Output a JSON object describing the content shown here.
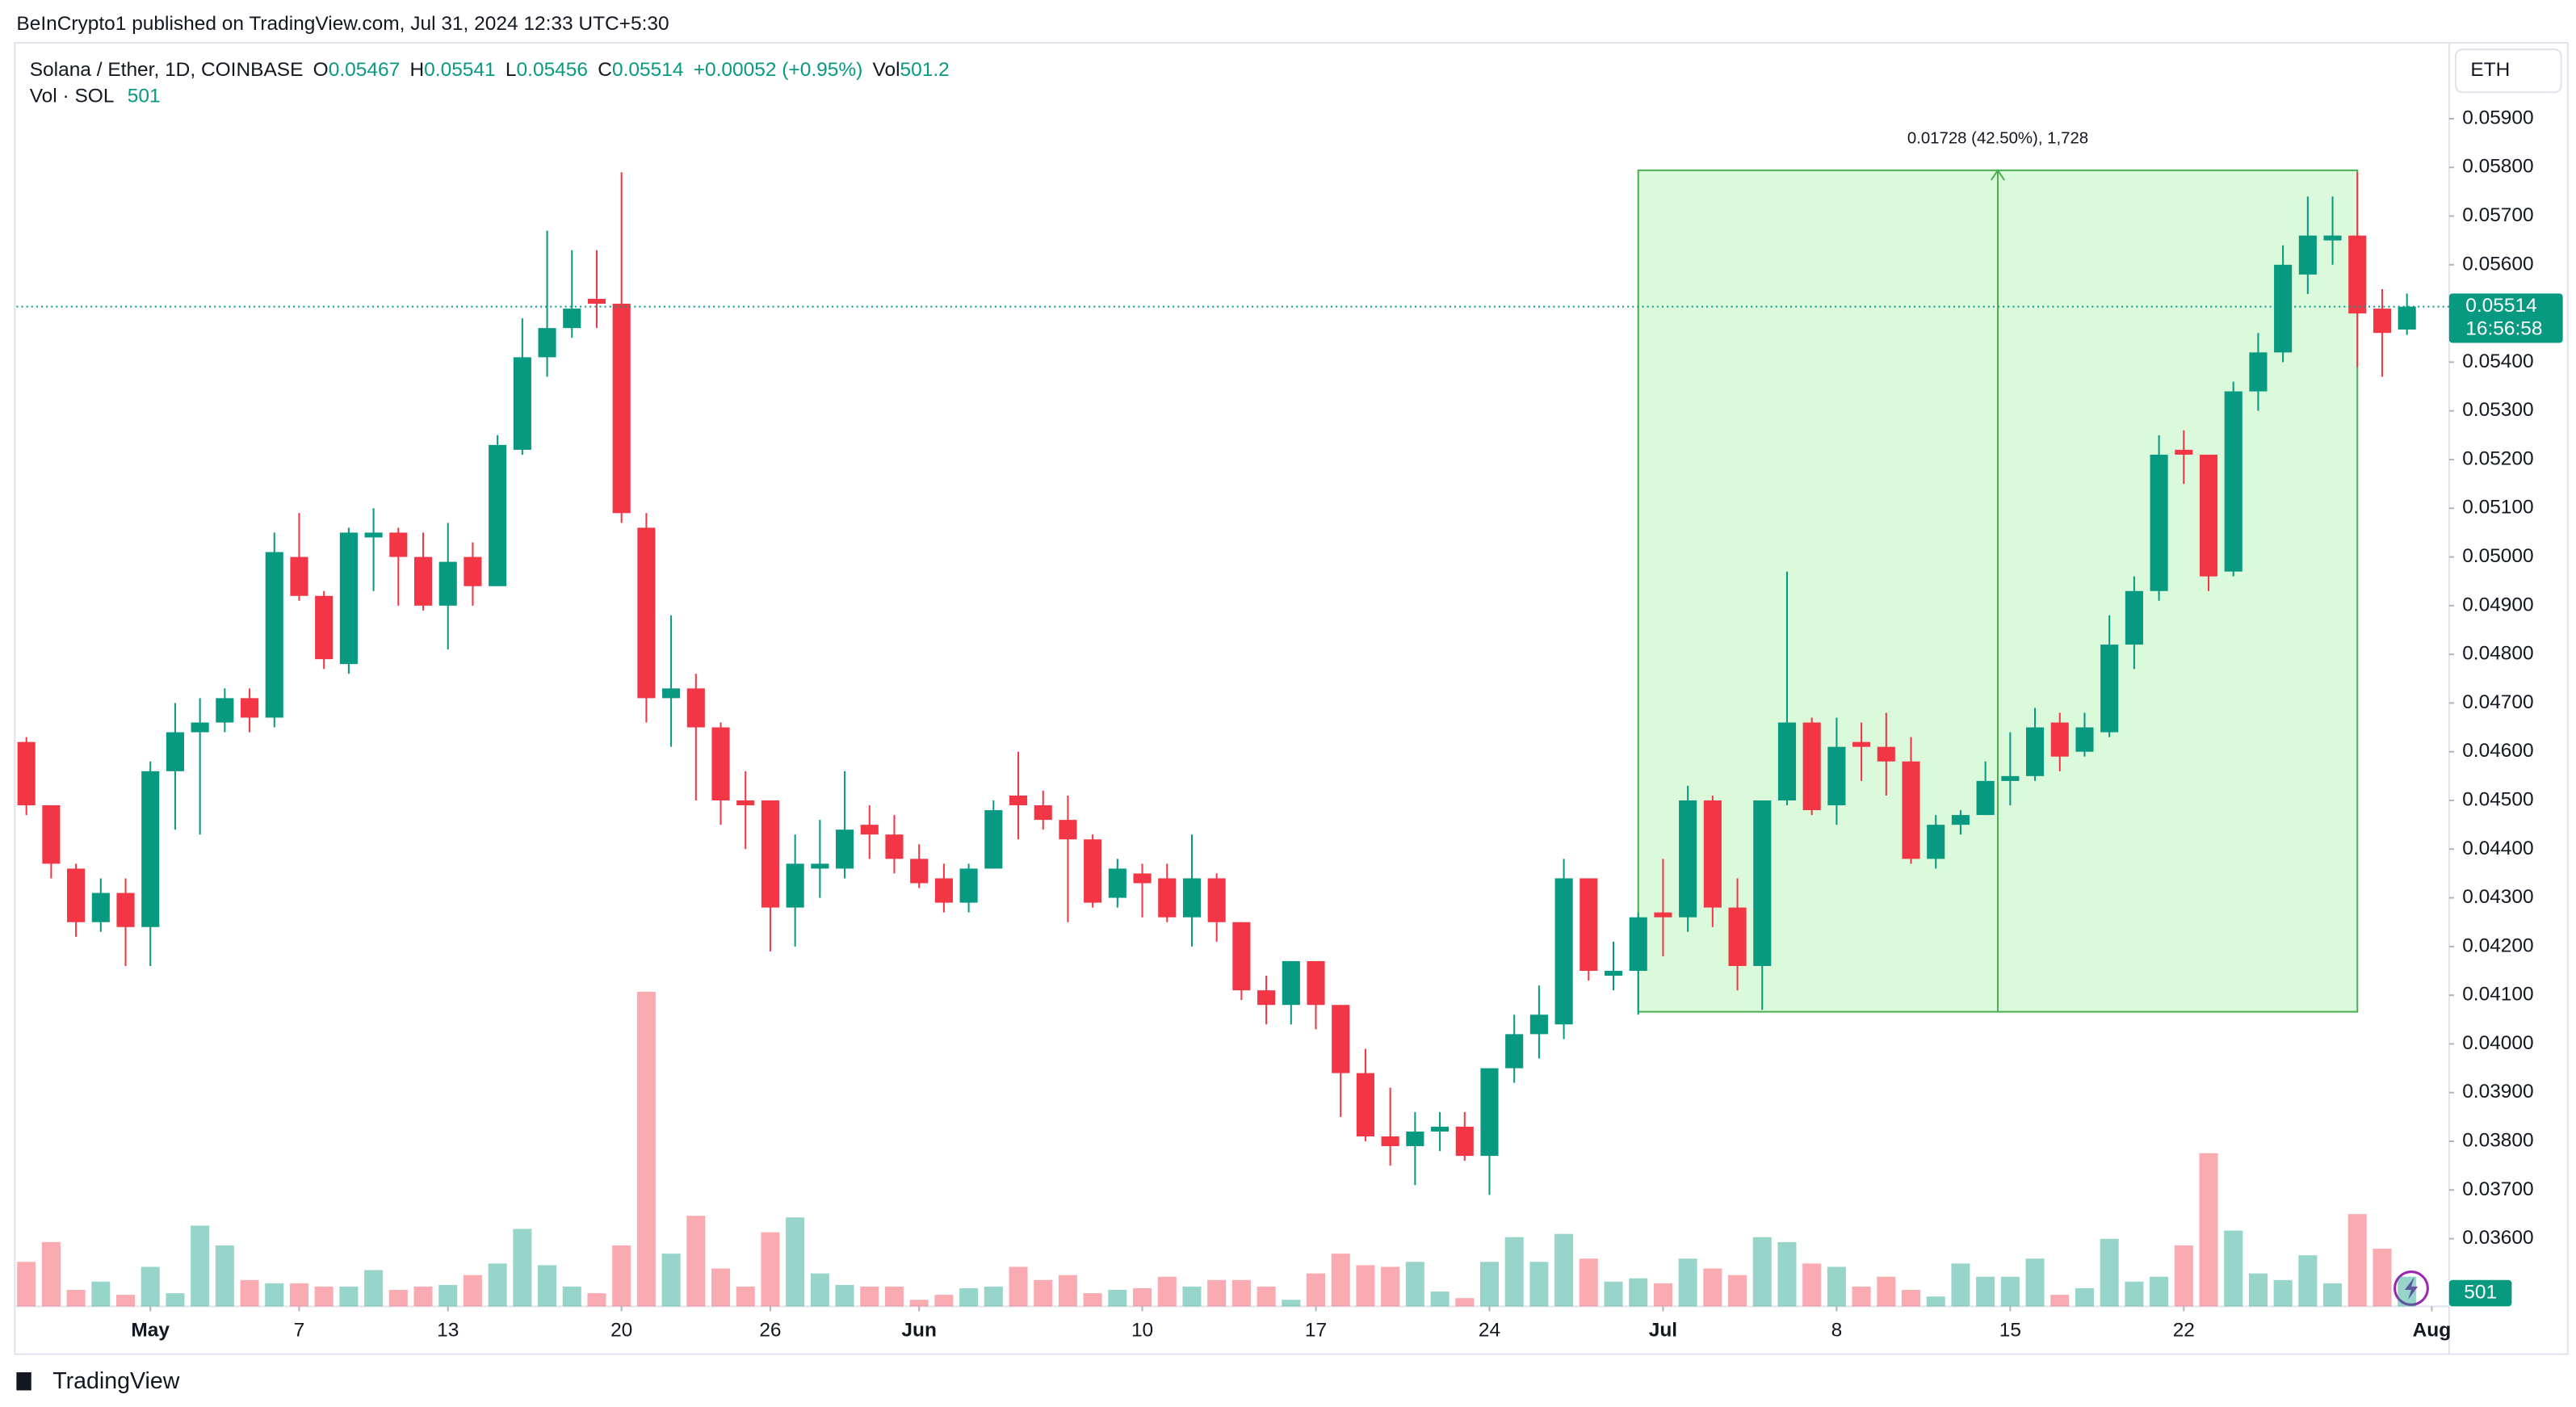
{
  "header": "BeInCrypto1 published on TradingView.com, Jul 31, 2024 12:33 UTC+5:30",
  "footer": "TradingView",
  "chart_data": {
    "type": "candlestick",
    "symbol": "Solana / Ether, 1D, COINBASE",
    "ohlc_letters": [
      "O",
      "H",
      "L",
      "C"
    ],
    "change": "+0.00052 (+0.95%)",
    "volume_letter": "Vol",
    "volume_title": "Vol · SOL",
    "volume_label": "501",
    "currency": "ETH",
    "countdown": "16:56:58",
    "up_color": "#089981",
    "down_color": "#f23645",
    "open": [
      0.0462,
      0.0449,
      0.0436,
      0.0425,
      0.0431,
      0.0424,
      0.0456,
      0.0464,
      0.0466,
      0.0471,
      0.0467,
      0.05,
      0.0492,
      0.0478,
      0.0504,
      0.0505,
      0.05,
      0.049,
      0.05,
      0.0494,
      0.0522,
      0.0541,
      0.0547,
      0.0553,
      0.0552,
      0.0506,
      0.0471,
      0.0473,
      0.0465,
      0.045,
      0.045,
      0.0428,
      0.0436,
      0.0436,
      0.0445,
      0.0443,
      0.0438,
      0.0434,
      0.0429,
      0.0436,
      0.0451,
      0.0449,
      0.0446,
      0.0442,
      0.043,
      0.0435,
      0.0434,
      0.0426,
      0.0434,
      0.0425,
      0.0411,
      0.0408,
      0.0417,
      0.0408,
      0.0394,
      0.0381,
      0.0379,
      0.0382,
      0.0383,
      0.0377,
      0.0395,
      0.0402,
      0.0404,
      0.0434,
      0.0414,
      0.0415,
      0.0427,
      0.0426,
      0.045,
      0.0428,
      0.0416,
      0.045,
      0.0466,
      0.0449,
      0.0462,
      0.0461,
      0.0458,
      0.0438,
      0.0445,
      0.0447,
      0.0454,
      0.0455,
      0.0466,
      0.046,
      0.0464,
      0.0482,
      0.0493,
      0.0522,
      0.0521,
      0.0497,
      0.0534,
      0.0542,
      0.0558,
      0.0565,
      0.0566,
      0.0551,
      0.05467
    ],
    "high": [
      0.0463,
      0.0449,
      0.0437,
      0.0434,
      0.0434,
      0.0458,
      0.047,
      0.0471,
      0.0473,
      0.0473,
      0.0505,
      0.0509,
      0.0493,
      0.0506,
      0.051,
      0.0506,
      0.0505,
      0.0507,
      0.0503,
      0.0525,
      0.0549,
      0.0567,
      0.0563,
      0.0563,
      0.0579,
      0.0509,
      0.0488,
      0.0476,
      0.0466,
      0.0456,
      0.045,
      0.0443,
      0.0446,
      0.0456,
      0.0449,
      0.0447,
      0.0441,
      0.0437,
      0.0437,
      0.045,
      0.046,
      0.0452,
      0.0451,
      0.0443,
      0.0438,
      0.0437,
      0.0437,
      0.0443,
      0.0435,
      0.0425,
      0.0414,
      0.0417,
      0.0417,
      0.0408,
      0.0399,
      0.0391,
      0.0386,
      0.0386,
      0.0386,
      0.0395,
      0.0406,
      0.0412,
      0.0438,
      0.0434,
      0.0421,
      0.0427,
      0.0438,
      0.0453,
      0.0451,
      0.0434,
      0.045,
      0.0497,
      0.0467,
      0.0467,
      0.0466,
      0.0468,
      0.0463,
      0.0447,
      0.0448,
      0.0458,
      0.0464,
      0.0469,
      0.0468,
      0.0468,
      0.0488,
      0.0496,
      0.0525,
      0.0526,
      0.0521,
      0.0536,
      0.0546,
      0.0564,
      0.0574,
      0.0574,
      0.0579,
      0.0555,
      0.05541
    ],
    "low": [
      0.0447,
      0.0434,
      0.0422,
      0.0423,
      0.0416,
      0.0416,
      0.0444,
      0.0443,
      0.0464,
      0.0464,
      0.0465,
      0.0491,
      0.0477,
      0.0476,
      0.0493,
      0.049,
      0.0489,
      0.0481,
      0.049,
      0.0494,
      0.0521,
      0.0537,
      0.0545,
      0.0547,
      0.0507,
      0.0466,
      0.0461,
      0.045,
      0.0445,
      0.044,
      0.0419,
      0.042,
      0.043,
      0.0434,
      0.0438,
      0.0435,
      0.0432,
      0.0427,
      0.0427,
      0.0436,
      0.0442,
      0.0444,
      0.0425,
      0.0428,
      0.0428,
      0.0426,
      0.0425,
      0.042,
      0.0421,
      0.0409,
      0.0404,
      0.0404,
      0.0403,
      0.0385,
      0.038,
      0.0375,
      0.0371,
      0.0378,
      0.0376,
      0.0369,
      0.0392,
      0.0397,
      0.0401,
      0.0413,
      0.0411,
      0.0406,
      0.0418,
      0.0423,
      0.0424,
      0.0411,
      0.0407,
      0.0449,
      0.0447,
      0.0445,
      0.0454,
      0.0451,
      0.0437,
      0.0436,
      0.0443,
      0.0447,
      0.0449,
      0.0454,
      0.0456,
      0.0459,
      0.0463,
      0.0477,
      0.0491,
      0.0515,
      0.0493,
      0.0496,
      0.053,
      0.054,
      0.0554,
      0.056,
      0.0539,
      0.0537,
      0.05456
    ],
    "close": [
      0.0449,
      0.0437,
      0.0425,
      0.0431,
      0.0424,
      0.0456,
      0.0464,
      0.0466,
      0.0471,
      0.0467,
      0.0501,
      0.0492,
      0.0479,
      0.0505,
      0.0505,
      0.05,
      0.049,
      0.0499,
      0.0494,
      0.0523,
      0.0541,
      0.0547,
      0.0551,
      0.0552,
      0.0509,
      0.0471,
      0.0473,
      0.0465,
      0.045,
      0.0449,
      0.0428,
      0.0437,
      0.0437,
      0.0444,
      0.0443,
      0.0438,
      0.0433,
      0.0429,
      0.0436,
      0.0448,
      0.0449,
      0.0446,
      0.0442,
      0.0429,
      0.0436,
      0.0433,
      0.0426,
      0.0434,
      0.0425,
      0.0411,
      0.0408,
      0.0417,
      0.0408,
      0.0394,
      0.0381,
      0.0379,
      0.0382,
      0.0383,
      0.0377,
      0.0395,
      0.0402,
      0.0406,
      0.0434,
      0.0415,
      0.0415,
      0.0426,
      0.0426,
      0.045,
      0.0428,
      0.0416,
      0.045,
      0.0466,
      0.0448,
      0.0461,
      0.0461,
      0.0458,
      0.0438,
      0.0445,
      0.0447,
      0.0454,
      0.0455,
      0.0465,
      0.0459,
      0.0465,
      0.0482,
      0.0493,
      0.0521,
      0.0521,
      0.0496,
      0.0534,
      0.0542,
      0.056,
      0.0566,
      0.0566,
      0.055,
      0.0546,
      0.05514
    ],
    "volume": [
      751,
      1084,
      278,
      417,
      195,
      667,
      222,
      1362,
      1029,
      445,
      389,
      389,
      334,
      334,
      612,
      278,
      334,
      361,
      528,
      723,
      1307,
      695,
      334,
      222,
      1029,
      5310,
      890,
      1529,
      639,
      334,
      1251,
      1501,
      556,
      361,
      334,
      334,
      111,
      195,
      306,
      334,
      667,
      445,
      528,
      222,
      278,
      306,
      500,
      334,
      445,
      445,
      334,
      111,
      556,
      890,
      695,
      667,
      751,
      250,
      139,
      751,
      1168,
      751,
      1223,
      806,
      417,
      473,
      389,
      806,
      639,
      528,
      1168,
      1084,
      723,
      667,
      334,
      500,
      278,
      167,
      723,
      500,
      500,
      806,
      195,
      306,
      1140,
      417,
      500,
      1029,
      2585,
      1279,
      556,
      445,
      862,
      389,
      1557,
      973,
      501.2
    ],
    "xlim": [
      -0.4,
      97.7
    ],
    "xticks": [
      {
        "value": 5,
        "label": "May"
      },
      {
        "value": 11,
        "label": "7"
      },
      {
        "value": 17,
        "label": "13"
      },
      {
        "value": 24,
        "label": "20"
      },
      {
        "value": 30,
        "label": "26"
      },
      {
        "value": 36,
        "label": "Jun"
      },
      {
        "value": 45,
        "label": "10"
      },
      {
        "value": 52,
        "label": "17"
      },
      {
        "value": 59,
        "label": "24"
      },
      {
        "value": 66,
        "label": "Jul"
      },
      {
        "value": 73,
        "label": "8"
      },
      {
        "value": 80,
        "label": "15"
      },
      {
        "value": 87,
        "label": "22"
      },
      {
        "value": 97,
        "label": "Aug"
      }
    ],
    "ylim": [
      0.03461,
      0.06049
    ],
    "yticks": [
      {
        "value": 0.036,
        "label": "0.03600"
      },
      {
        "value": 0.037,
        "label": "0.03700"
      },
      {
        "value": 0.038,
        "label": "0.03800"
      },
      {
        "value": 0.039,
        "label": "0.03900"
      },
      {
        "value": 0.04,
        "label": "0.04000"
      },
      {
        "value": 0.041,
        "label": "0.04100"
      },
      {
        "value": 0.042,
        "label": "0.04200"
      },
      {
        "value": 0.043,
        "label": "0.04300"
      },
      {
        "value": 0.044,
        "label": "0.04400"
      },
      {
        "value": 0.045,
        "label": "0.04500"
      },
      {
        "value": 0.046,
        "label": "0.04600"
      },
      {
        "value": 0.047,
        "label": "0.04700"
      },
      {
        "value": 0.048,
        "label": "0.04800"
      },
      {
        "value": 0.049,
        "label": "0.04900"
      },
      {
        "value": 0.05,
        "label": "0.05000"
      },
      {
        "value": 0.051,
        "label": "0.05100"
      },
      {
        "value": 0.052,
        "label": "0.05200"
      },
      {
        "value": 0.053,
        "label": "0.05300"
      },
      {
        "value": 0.054,
        "label": "0.05400"
      },
      {
        "value": 0.055,
        "label": "0.05500"
      },
      {
        "value": 0.056,
        "label": "0.05600"
      },
      {
        "value": 0.057,
        "label": "0.05700"
      },
      {
        "value": 0.058,
        "label": "0.05800"
      },
      {
        "value": 0.059,
        "label": "0.05900"
      }
    ],
    "measure": {
      "label": "0.01728 (42.50%), 1,728",
      "x": [
        65,
        94
      ],
      "y": [
        0.04066,
        0.05794
      ]
    }
  }
}
